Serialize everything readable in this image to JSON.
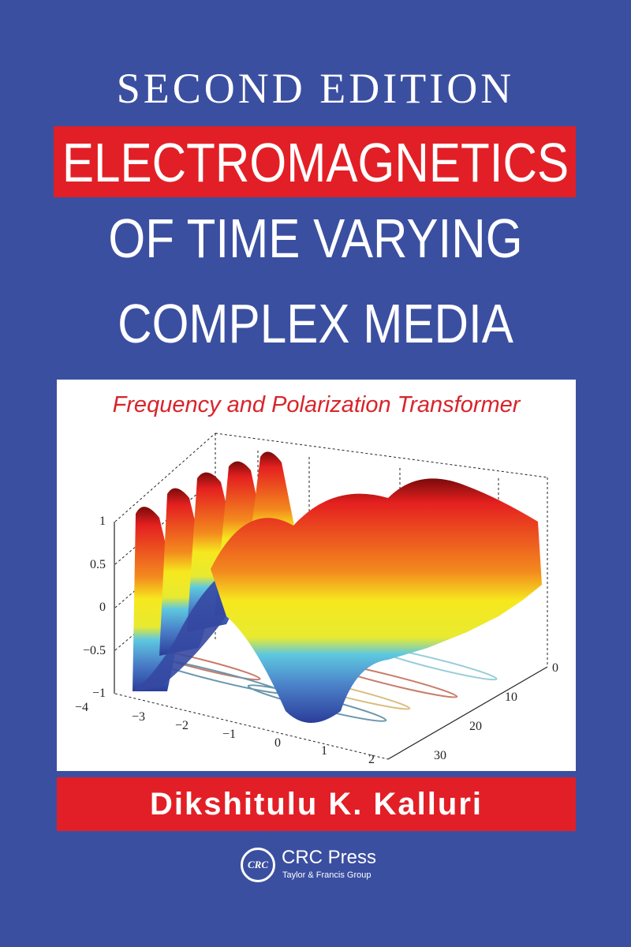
{
  "cover": {
    "edition": "SECOND EDITION",
    "title_lines": [
      "ELECTROMAGNETICS",
      "OF TIME VARYING",
      "COMPLEX MEDIA"
    ],
    "subtitle": "Frequency and Polarization Transformer",
    "author": "Dikshitulu K. Kalluri",
    "colors": {
      "background": "#3b4fa1",
      "accent_red": "#e21f26",
      "subtitle_red": "#d8242b"
    }
  },
  "figure": {
    "type": "3d-surface",
    "z_ticks": [
      "1",
      "0.5",
      "0",
      "−0.5",
      "−1"
    ],
    "x_ticks": [
      "−4",
      "−3",
      "−2",
      "−1",
      "0",
      "1",
      "2"
    ],
    "y_ticks": [
      "0",
      "10",
      "20",
      "30"
    ],
    "colormap": [
      "#7a0a0a",
      "#e52020",
      "#f6e81e",
      "#5ec8e0",
      "#2b3d9a"
    ]
  },
  "publisher": {
    "logo_mark": "CRC",
    "name": "CRC Press",
    "group": "Taylor & Francis Group"
  }
}
